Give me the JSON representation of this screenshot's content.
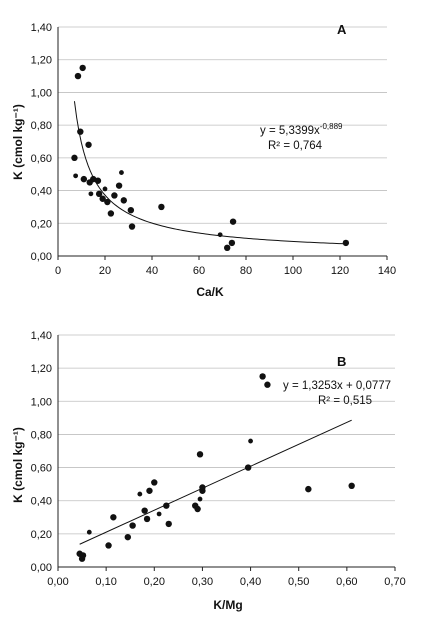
{
  "chart_data": [
    {
      "type": "scatter",
      "panel_label": "A",
      "xlabel": "Ca/K",
      "ylabel": "K (cmol kg⁻¹)",
      "xlim": [
        0,
        140
      ],
      "ylim": [
        0,
        1.4
      ],
      "x_ticks": [
        "0",
        "20",
        "40",
        "60",
        "80",
        "100",
        "120",
        "140"
      ],
      "y_ticks": [
        "0,00",
        "0,20",
        "0,40",
        "0,60",
        "0,80",
        "1,00",
        "1,20",
        "1,40"
      ],
      "grid": true,
      "equation": "y = 5,3399x",
      "equation_exponent": "-0,889",
      "r2": "R² = 0,764",
      "trendline": {
        "kind": "power",
        "a": 5.3399,
        "b": -0.889
      },
      "marker_color": "#111111",
      "points": [
        {
          "x": 8.5,
          "y": 1.1
        },
        {
          "x": 10.5,
          "y": 1.15
        },
        {
          "x": 7.0,
          "y": 0.6
        },
        {
          "x": 7.5,
          "y": 0.49
        },
        {
          "x": 9.5,
          "y": 0.76
        },
        {
          "x": 13.0,
          "y": 0.68
        },
        {
          "x": 11.0,
          "y": 0.47
        },
        {
          "x": 13.5,
          "y": 0.45
        },
        {
          "x": 14.0,
          "y": 0.38
        },
        {
          "x": 15.0,
          "y": 0.47
        },
        {
          "x": 17.0,
          "y": 0.46
        },
        {
          "x": 17.5,
          "y": 0.38
        },
        {
          "x": 19.0,
          "y": 0.35
        },
        {
          "x": 20.0,
          "y": 0.41
        },
        {
          "x": 21.0,
          "y": 0.33
        },
        {
          "x": 22.5,
          "y": 0.26
        },
        {
          "x": 24.0,
          "y": 0.37
        },
        {
          "x": 26.0,
          "y": 0.43
        },
        {
          "x": 27.0,
          "y": 0.51
        },
        {
          "x": 28.0,
          "y": 0.34
        },
        {
          "x": 31.0,
          "y": 0.28
        },
        {
          "x": 31.5,
          "y": 0.18
        },
        {
          "x": 44.0,
          "y": 0.3
        },
        {
          "x": 69.0,
          "y": 0.13
        },
        {
          "x": 72.0,
          "y": 0.05
        },
        {
          "x": 74.0,
          "y": 0.08
        },
        {
          "x": 74.5,
          "y": 0.21
        },
        {
          "x": 122.5,
          "y": 0.08
        }
      ]
    },
    {
      "type": "scatter",
      "panel_label": "B",
      "xlabel": "K/Mg",
      "ylabel": "K (cmol kg⁻¹)",
      "xlim": [
        0,
        0.7
      ],
      "ylim": [
        0,
        1.4
      ],
      "x_ticks": [
        "0,00",
        "0,10",
        "0,20",
        "0,30",
        "0,40",
        "0,50",
        "0,60",
        "0,70"
      ],
      "y_ticks": [
        "0,00",
        "0,20",
        "0,40",
        "0,60",
        "0,80",
        "1,00",
        "1,20",
        "1,40"
      ],
      "grid": true,
      "equation": "y = 1,3253x + 0,0777",
      "r2": "R² = 0,515",
      "trendline": {
        "kind": "linear",
        "slope": 1.3253,
        "intercept": 0.0777,
        "x_range": [
          0.045,
          0.61
        ]
      },
      "marker_color": "#111111",
      "points": [
        {
          "x": 0.045,
          "y": 0.08
        },
        {
          "x": 0.05,
          "y": 0.05
        },
        {
          "x": 0.052,
          "y": 0.07
        },
        {
          "x": 0.065,
          "y": 0.21
        },
        {
          "x": 0.105,
          "y": 0.13
        },
        {
          "x": 0.115,
          "y": 0.3
        },
        {
          "x": 0.145,
          "y": 0.18
        },
        {
          "x": 0.155,
          "y": 0.25
        },
        {
          "x": 0.17,
          "y": 0.44
        },
        {
          "x": 0.18,
          "y": 0.34
        },
        {
          "x": 0.185,
          "y": 0.29
        },
        {
          "x": 0.19,
          "y": 0.46
        },
        {
          "x": 0.2,
          "y": 0.51
        },
        {
          "x": 0.21,
          "y": 0.32
        },
        {
          "x": 0.225,
          "y": 0.37
        },
        {
          "x": 0.23,
          "y": 0.26
        },
        {
          "x": 0.285,
          "y": 0.37
        },
        {
          "x": 0.29,
          "y": 0.35
        },
        {
          "x": 0.295,
          "y": 0.41
        },
        {
          "x": 0.295,
          "y": 0.68
        },
        {
          "x": 0.3,
          "y": 0.46
        },
        {
          "x": 0.3,
          "y": 0.48
        },
        {
          "x": 0.395,
          "y": 0.6
        },
        {
          "x": 0.4,
          "y": 0.76
        },
        {
          "x": 0.425,
          "y": 1.15
        },
        {
          "x": 0.435,
          "y": 1.1
        },
        {
          "x": 0.52,
          "y": 0.47
        },
        {
          "x": 0.61,
          "y": 0.49
        }
      ]
    }
  ]
}
